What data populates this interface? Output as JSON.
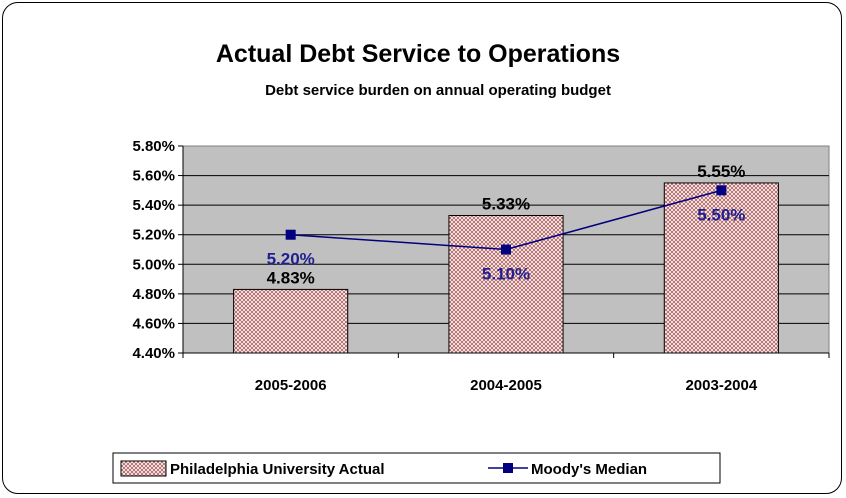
{
  "chart_data": {
    "type": "bar",
    "title": "Actual Debt Service to Operations",
    "subtitle": "Debt service burden on annual operating budget",
    "categories": [
      "2005-2006",
      "2004-2005",
      "2003-2004"
    ],
    "series": [
      {
        "name": "Philadelphia University Actual",
        "type": "bar",
        "values": [
          4.83,
          5.33,
          5.55
        ],
        "labels": [
          "4.83%",
          "5.33%",
          "5.55%"
        ],
        "color": "#c8a0a0"
      },
      {
        "name": "Moody's Median",
        "type": "line",
        "values": [
          5.2,
          5.1,
          5.5
        ],
        "labels": [
          "5.20%",
          "5.10%",
          "5.50%"
        ],
        "color": "#000080"
      }
    ],
    "ylim": [
      4.4,
      5.8
    ],
    "yticks": [
      5.8,
      5.6,
      5.4,
      5.2,
      5.0,
      4.8,
      4.6,
      4.4
    ],
    "ytick_labels": [
      "5.80%",
      "5.60%",
      "5.40%",
      "5.20%",
      "5.00%",
      "4.80%",
      "4.60%",
      "4.40%"
    ],
    "grid": true,
    "plot_background": "#c0c0c0",
    "legend_position": "bottom"
  }
}
